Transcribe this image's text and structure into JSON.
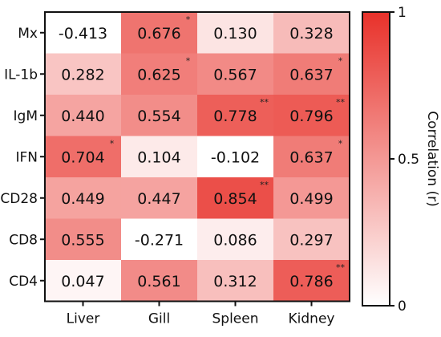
{
  "chart_data": {
    "type": "heatmap",
    "rows": [
      "Mx",
      "IL-1b",
      "IgM",
      "IFN",
      "CD28",
      "CD8",
      "CD4"
    ],
    "columns": [
      "Liver",
      "Gill",
      "Spleen",
      "Kidney"
    ],
    "values": [
      [
        -0.413,
        0.676,
        0.13,
        0.328
      ],
      [
        0.282,
        0.625,
        0.567,
        0.637
      ],
      [
        0.44,
        0.554,
        0.778,
        0.796
      ],
      [
        0.704,
        0.104,
        -0.102,
        0.637
      ],
      [
        0.449,
        0.447,
        0.854,
        0.499
      ],
      [
        0.555,
        -0.271,
        0.086,
        0.297
      ],
      [
        0.047,
        0.561,
        0.312,
        0.786
      ]
    ],
    "value_labels": [
      [
        "-0.413",
        "0.676",
        "0.130",
        "0.328"
      ],
      [
        "0.282",
        "0.625",
        "0.567",
        "0.637"
      ],
      [
        "0.440",
        "0.554",
        "0.778",
        "0.796"
      ],
      [
        "0.704",
        "0.104",
        "-0.102",
        "0.637"
      ],
      [
        "0.449",
        "0.447",
        "0.854",
        "0.499"
      ],
      [
        "0.555",
        "-0.271",
        "0.086",
        "0.297"
      ],
      [
        "0.047",
        "0.561",
        "0.312",
        "0.786"
      ]
    ],
    "significance": [
      [
        "",
        "*",
        "",
        ""
      ],
      [
        "",
        "*",
        "",
        "*"
      ],
      [
        "",
        "",
        "**",
        "**"
      ],
      [
        "*",
        "",
        "",
        "*"
      ],
      [
        "",
        "",
        "**",
        ""
      ],
      [
        "",
        "",
        "",
        ""
      ],
      [
        "",
        "",
        "",
        "**"
      ]
    ],
    "colorbar": {
      "label": "Correlation (r)",
      "min": 0,
      "max": 1,
      "ticks": [
        0,
        0.5,
        1
      ],
      "tick_labels": [
        "0",
        "0.5",
        "1"
      ],
      "low_color": "#ffffff",
      "high_color": "#e8312a"
    },
    "xlabel": "",
    "ylabel": "",
    "title": ""
  }
}
